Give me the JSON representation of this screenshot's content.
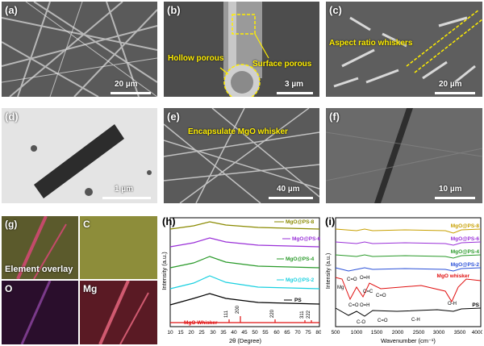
{
  "panels": {
    "a": {
      "label": "(a)",
      "scale": "20 µm"
    },
    "b": {
      "label": "(b)",
      "scale": "3 µm",
      "hollow": "Hollow porous",
      "surface": "Surface porous"
    },
    "c": {
      "label": "(c)",
      "scale": "20 µm",
      "aspect": "Aspect ratio whiskers"
    },
    "d": {
      "label": "(d)",
      "scale": "1 µm"
    },
    "e": {
      "label": "(e)",
      "scale": "40 µm",
      "encap": "Encapsulate MgO whisker"
    },
    "f": {
      "label": "(f)",
      "scale": "10 µm"
    },
    "g": {
      "label": "(g)",
      "overlay": "Element overlay",
      "c": "C",
      "o": "O",
      "mg": "Mg"
    },
    "h": {
      "label": "(h)",
      "ylabel": "Intensity (a.u.)",
      "xlabel": "2θ (Degree)",
      "ticks": [
        "10",
        "15",
        "20",
        "25",
        "30",
        "35",
        "40",
        "45",
        "50",
        "55",
        "60",
        "65",
        "70",
        "75",
        "80"
      ],
      "series": [
        "MgO@PS-8",
        "MgO@PS-6",
        "MgO@PS-4",
        "MgO@PS-2",
        "PS",
        "MgO Whisker"
      ],
      "peaks": [
        "111",
        "200",
        "220",
        "311",
        "222"
      ]
    },
    "i": {
      "label": "(i)",
      "ylabel": "Intensity (a.u.)",
      "xlabel": "Wavenumber (cm⁻¹)",
      "ticks": [
        "500",
        "1000",
        "1500",
        "2000",
        "2500",
        "3000",
        "3500",
        "4000"
      ],
      "series": [
        "MgO@PS-8",
        "MgO@PS-6",
        "MgO@PS-4",
        "MgO@PS-2",
        "MgO whisker",
        "PS"
      ],
      "bands": {
        "mg": "Mg",
        "co1": "C=O",
        "oh1": "O=H",
        "co2": "C=O",
        "cc": "C=C",
        "oh2": "O=H",
        "co3": "C=O",
        "oh3": "O-H",
        "co4": "C-O",
        "co5": "C=O",
        "ch": "C-H"
      }
    }
  }
}
